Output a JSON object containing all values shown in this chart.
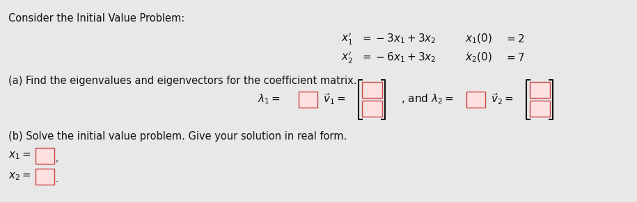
{
  "bg_color": "#e8e8e8",
  "title_text": "Consider the Initial Value Problem:",
  "part_a": "(a) Find the eigenvalues and eigenvectors for the coefficient matrix.",
  "part_b": "(b) Solve the initial value problem. Give your solution in real form.",
  "box_fill": "#ffe0e0",
  "box_edge": "#cc4444",
  "text_color": "#111111",
  "font_size_main": 10.5,
  "eq_font_size": 11,
  "eq1_prime": "$x_1'$",
  "eq1_rhs": "$= -3x_1 + 3x_2$",
  "eq1_ic_lhs": "$x_1(0)$",
  "eq1_ic_eq": "$=$",
  "eq1_ic_val": "$2$",
  "eq2_prime": "$x_2'$",
  "eq2_rhs": "$= -6x_1 + 3x_2$",
  "eq2_suffix": "$'$",
  "eq2_ic_lhs": "$x_2(0)$",
  "eq2_ic_eq": "$=$",
  "eq2_ic_val": "$7$",
  "lam1_text": "$\\lambda_1 =$",
  "v1_text": "$\\vec{v}_1 =$",
  "and_lam2_text": ", and $\\lambda_2 =$",
  "v2_text": "$\\vec{v}_2 =$",
  "x1_label": "$x_1 =$",
  "x2_label": "$x_2 =$"
}
